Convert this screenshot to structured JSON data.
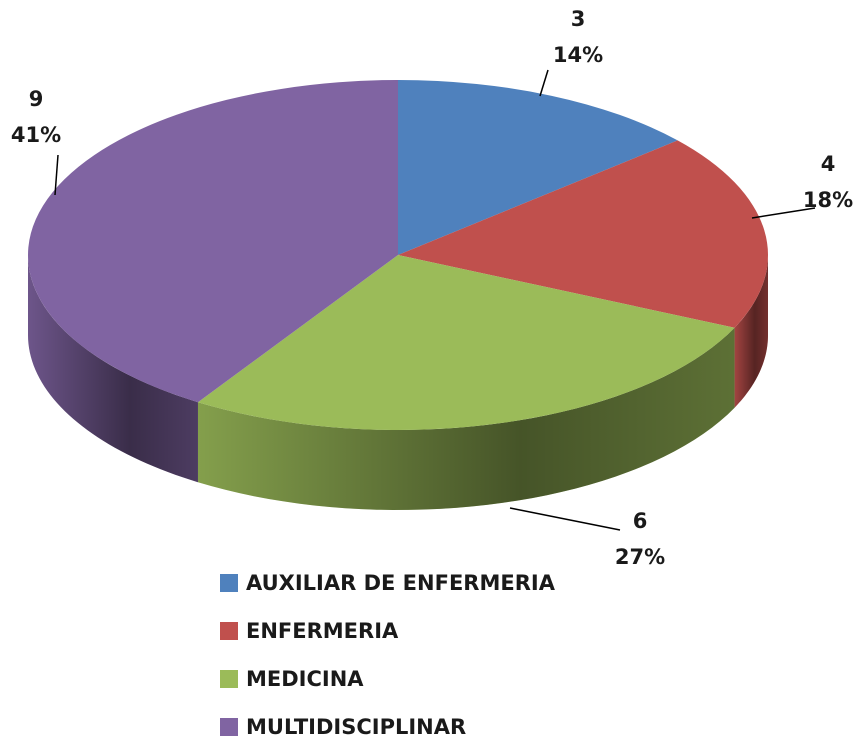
{
  "chart_data": {
    "type": "pie3d",
    "categories": [
      "AUXILIAR DE ENFERMERIA",
      "ENFERMERIA",
      "MEDICINA",
      "MULTIDISCIPLINAR"
    ],
    "values": [
      3,
      4,
      6,
      9
    ],
    "percent_labels": [
      "14%",
      "18%",
      "27%",
      "41%"
    ],
    "colors": [
      "#4f81bd",
      "#c0504d",
      "#9bbb59",
      "#8064a2"
    ],
    "legend": "bottom"
  }
}
